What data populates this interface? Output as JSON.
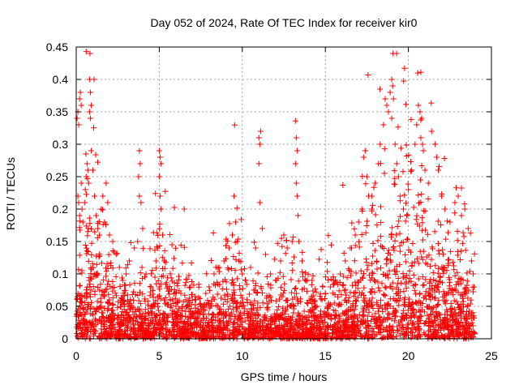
{
  "chart_data": {
    "type": "scatter",
    "title": "Day 052 of 2024, Rate Of TEC Index for receiver kir0",
    "xlabel": "GPS time / hours",
    "ylabel": "ROTI / TECUs",
    "xlim": [
      0,
      25
    ],
    "ylim": [
      0,
      0.45
    ],
    "xticks": [
      "0",
      "5",
      "10",
      "15",
      "20",
      "25"
    ],
    "yticks": [
      "0",
      "0.05",
      "0.1",
      "0.15",
      "0.2",
      "0.25",
      "0.3",
      "0.35",
      "0.4",
      "0.45"
    ],
    "grid": true,
    "marker": "+",
    "color": "#ff0000",
    "series": [
      {
        "points": [
          [
            0.05,
            0.34
          ],
          [
            0.1,
            0.35
          ],
          [
            0.15,
            0.33
          ],
          [
            0.2,
            0.37
          ],
          [
            0.25,
            0.38
          ],
          [
            0.3,
            0.36
          ],
          [
            0.1,
            0.22
          ],
          [
            0.15,
            0.21
          ],
          [
            0.2,
            0.19
          ],
          [
            0.3,
            0.24
          ],
          [
            0.35,
            0.2
          ],
          [
            0.4,
            0.18
          ],
          [
            0.5,
            0.21
          ],
          [
            0.55,
            0.23
          ],
          [
            0.6,
            0.25
          ],
          [
            0.65,
            0.27
          ],
          [
            0.7,
            0.26
          ],
          [
            0.75,
            0.24
          ],
          [
            0.6,
            0.443
          ],
          [
            0.8,
            0.4
          ],
          [
            0.85,
            0.38
          ],
          [
            0.8,
            0.35
          ],
          [
            0.85,
            0.34
          ],
          [
            0.9,
            0.36
          ],
          [
            0.9,
            0.29
          ],
          [
            1.0,
            0.26
          ],
          [
            1.1,
            0.22
          ],
          [
            1.2,
            0.19
          ],
          [
            1.3,
            0.17
          ],
          [
            1.4,
            0.16
          ],
          [
            1.5,
            0.2
          ],
          [
            1.6,
            0.22
          ],
          [
            1.7,
            0.18
          ],
          [
            1.8,
            0.24
          ],
          [
            1.9,
            0.21
          ],
          [
            2.0,
            0.16
          ],
          [
            2.2,
            0.15
          ],
          [
            2.4,
            0.13
          ],
          [
            2.6,
            0.11
          ],
          [
            2.8,
            0.09
          ],
          [
            3.0,
            0.1
          ],
          [
            3.2,
            0.12
          ],
          [
            3.5,
            0.14
          ],
          [
            3.7,
            0.15
          ],
          [
            3.8,
            0.29
          ],
          [
            3.85,
            0.27
          ],
          [
            3.75,
            0.25
          ],
          [
            3.8,
            0.22
          ],
          [
            3.9,
            0.21
          ],
          [
            4.0,
            0.17
          ],
          [
            4.2,
            0.1
          ],
          [
            4.5,
            0.08
          ],
          [
            4.8,
            0.12
          ],
          [
            4.9,
            0.14
          ],
          [
            5.0,
            0.29
          ],
          [
            5.05,
            0.28
          ],
          [
            5.1,
            0.27
          ],
          [
            5.0,
            0.25
          ],
          [
            5.05,
            0.22
          ],
          [
            5.1,
            0.2
          ],
          [
            5.2,
            0.16
          ],
          [
            5.3,
            0.12
          ],
          [
            5.5,
            0.08
          ],
          [
            5.8,
            0.06
          ],
          [
            6.0,
            0.05
          ],
          [
            6.3,
            0.07
          ],
          [
            6.5,
            0.2
          ],
          [
            6.6,
            0.06
          ],
          [
            6.8,
            0.05
          ],
          [
            7.0,
            0.04
          ],
          [
            7.2,
            0.06
          ],
          [
            7.5,
            0.05
          ],
          [
            7.8,
            0.07
          ],
          [
            8.0,
            0.08
          ],
          [
            8.3,
            0.1
          ],
          [
            8.6,
            0.11
          ],
          [
            8.9,
            0.12
          ],
          [
            9.2,
            0.14
          ],
          [
            9.4,
            0.16
          ],
          [
            9.5,
            0.22
          ],
          [
            9.6,
            0.18
          ],
          [
            9.7,
            0.15
          ],
          [
            9.8,
            0.12
          ],
          [
            10.0,
            0.1
          ],
          [
            10.2,
            0.09
          ],
          [
            10.5,
            0.11
          ],
          [
            10.8,
            0.14
          ],
          [
            11.0,
            0.31
          ],
          [
            11.05,
            0.3
          ],
          [
            11.1,
            0.32
          ],
          [
            11.0,
            0.27
          ],
          [
            11.05,
            0.21
          ],
          [
            11.2,
            0.17
          ],
          [
            11.4,
            0.13
          ],
          [
            11.7,
            0.1
          ],
          [
            12.0,
            0.09
          ],
          [
            12.3,
            0.12
          ],
          [
            12.5,
            0.16
          ],
          [
            12.7,
            0.14
          ],
          [
            13.0,
            0.15
          ],
          [
            13.2,
            0.336
          ],
          [
            13.25,
            0.31
          ],
          [
            13.3,
            0.29
          ],
          [
            13.2,
            0.27
          ],
          [
            13.25,
            0.24
          ],
          [
            13.3,
            0.22
          ],
          [
            13.35,
            0.19
          ],
          [
            13.4,
            0.15
          ],
          [
            13.6,
            0.12
          ],
          [
            13.9,
            0.09
          ],
          [
            14.2,
            0.06
          ],
          [
            14.5,
            0.05
          ],
          [
            14.8,
            0.06
          ],
          [
            15.0,
            0.07
          ],
          [
            15.3,
            0.08
          ],
          [
            15.6,
            0.09
          ],
          [
            15.9,
            0.1
          ],
          [
            16.2,
            0.12
          ],
          [
            16.5,
            0.14
          ],
          [
            16.8,
            0.16
          ],
          [
            17.0,
            0.18
          ],
          [
            17.2,
            0.2
          ],
          [
            17.3,
            0.28
          ],
          [
            17.4,
            0.29
          ],
          [
            17.5,
            0.25
          ],
          [
            17.6,
            0.22
          ],
          [
            17.8,
            0.2
          ],
          [
            18.0,
            0.24
          ],
          [
            18.2,
            0.27
          ],
          [
            18.3,
            0.3
          ],
          [
            18.5,
            0.33
          ],
          [
            18.6,
            0.37
          ],
          [
            18.7,
            0.36
          ],
          [
            18.8,
            0.35
          ],
          [
            18.9,
            0.38
          ],
          [
            19.0,
            0.4
          ],
          [
            19.05,
            0.39
          ],
          [
            19.1,
            0.37
          ],
          [
            19.0,
            0.34
          ],
          [
            19.2,
            0.3
          ],
          [
            19.3,
            0.27
          ],
          [
            19.4,
            0.25
          ],
          [
            19.5,
            0.22
          ],
          [
            19.7,
            0.2
          ],
          [
            19.9,
            0.19
          ],
          [
            20.0,
            0.23
          ],
          [
            20.2,
            0.26
          ],
          [
            20.4,
            0.3
          ],
          [
            20.5,
            0.33
          ],
          [
            20.6,
            0.36
          ],
          [
            20.7,
            0.35
          ],
          [
            20.8,
            0.34
          ],
          [
            20.75,
            0.31
          ],
          [
            20.85,
            0.3
          ],
          [
            20.9,
            0.29
          ],
          [
            21.0,
            0.26
          ],
          [
            21.2,
            0.24
          ],
          [
            21.4,
            0.32
          ],
          [
            21.6,
            0.3
          ],
          [
            21.7,
            0.28
          ],
          [
            21.8,
            0.26
          ],
          [
            22.0,
            0.22
          ],
          [
            22.2,
            0.2
          ],
          [
            22.5,
            0.18
          ],
          [
            22.8,
            0.21
          ],
          [
            23.0,
            0.22
          ],
          [
            23.2,
            0.19
          ],
          [
            23.4,
            0.2
          ],
          [
            23.6,
            0.17
          ],
          [
            23.8,
            0.12
          ],
          [
            23.9,
            0.1
          ]
        ]
      }
    ]
  }
}
